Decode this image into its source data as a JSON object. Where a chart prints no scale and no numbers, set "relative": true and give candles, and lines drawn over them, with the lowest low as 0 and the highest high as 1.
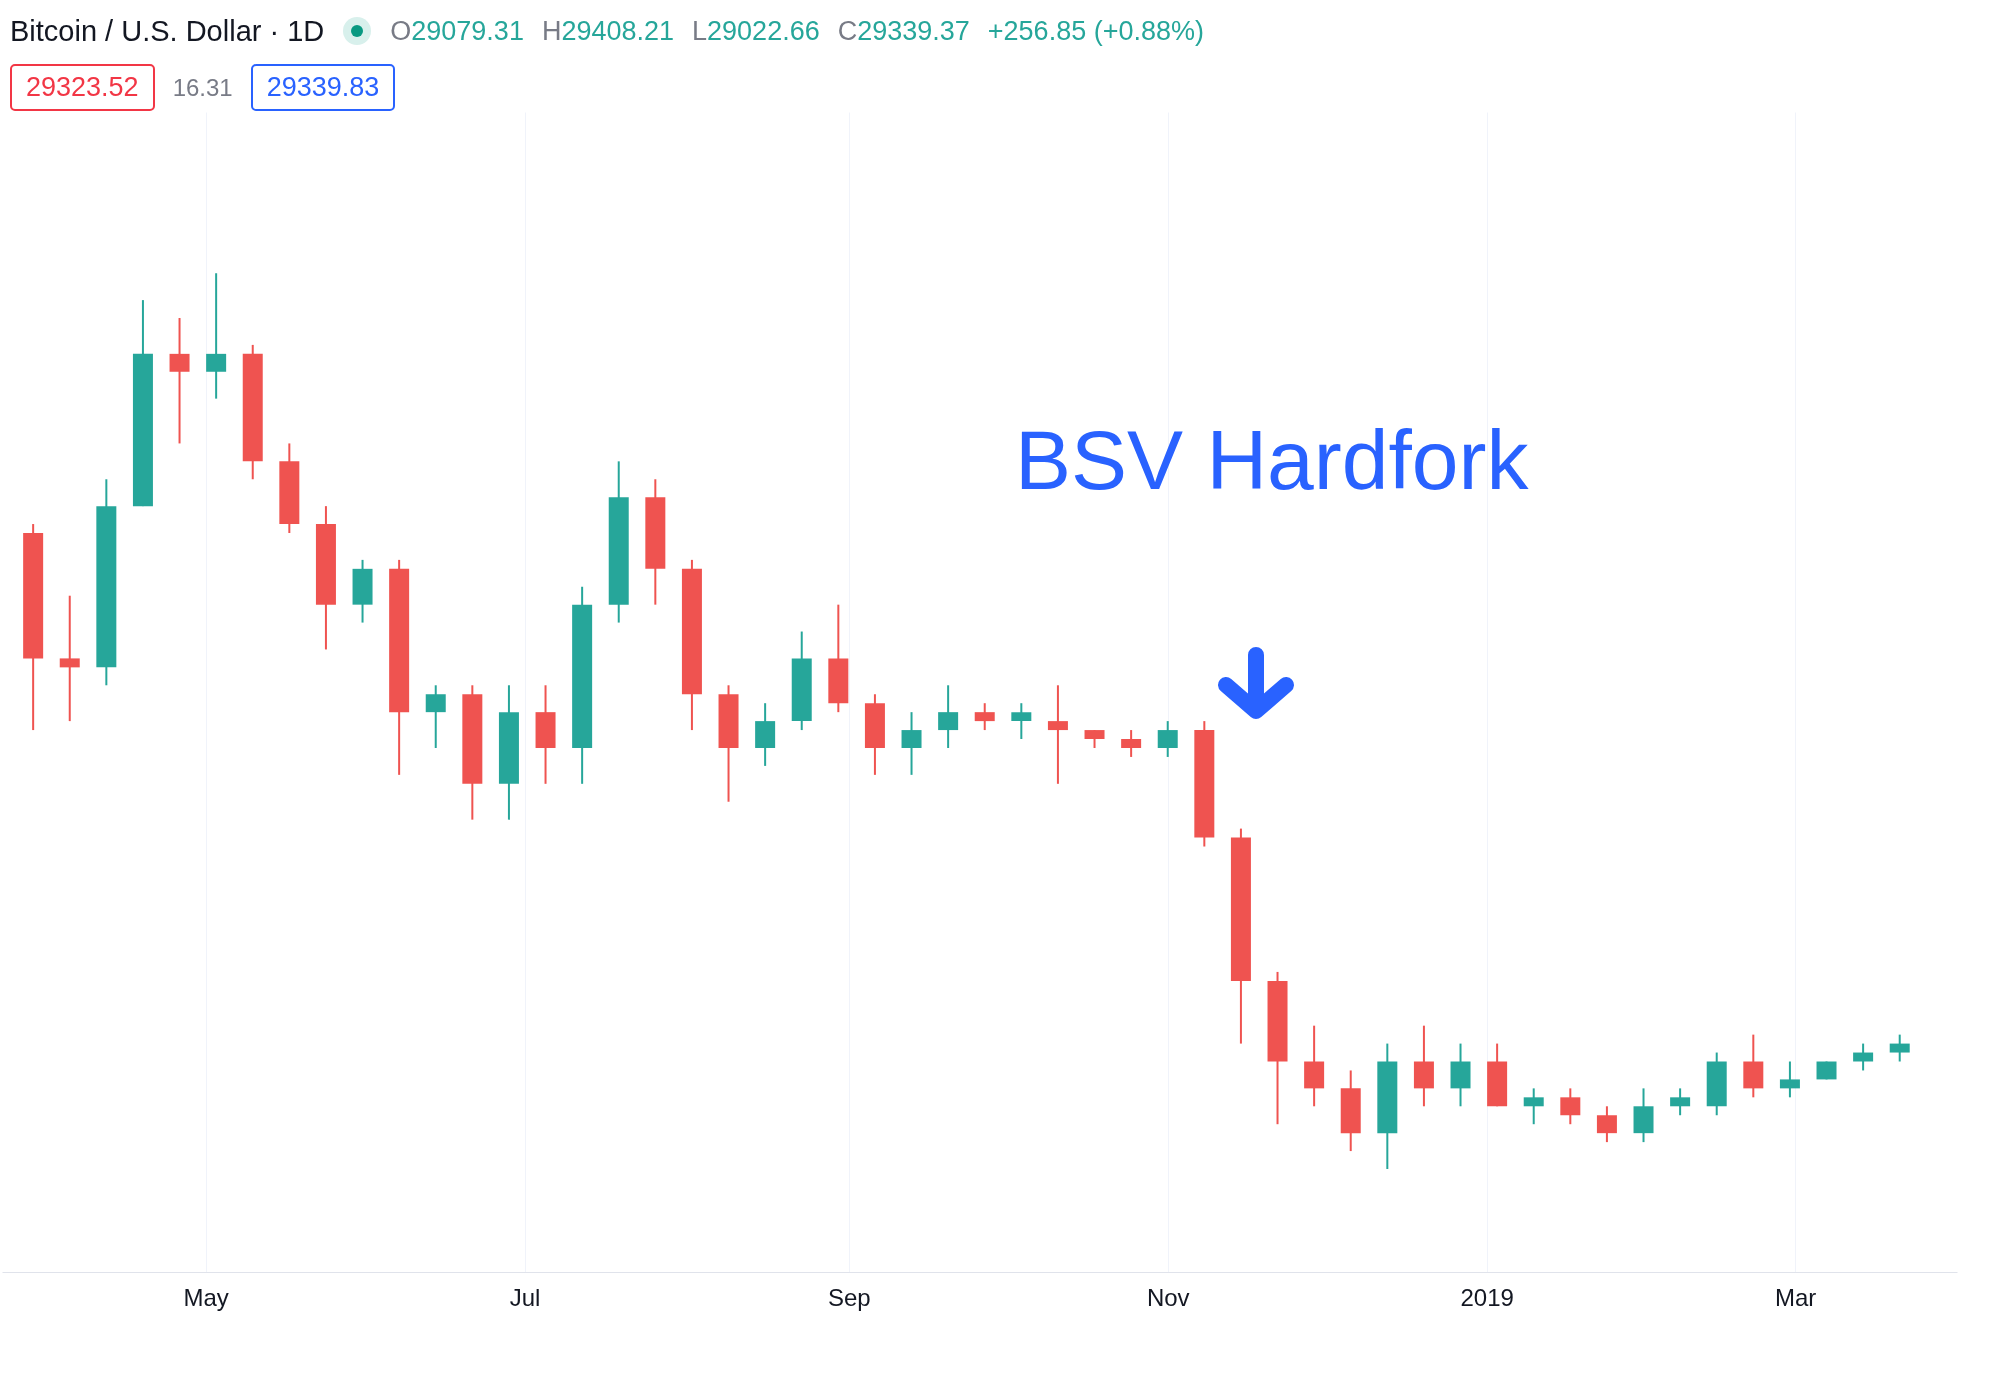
{
  "chart_data": {
    "type": "candlestick",
    "title": "Bitcoin / U.S. Dollar · 1D",
    "relative": true,
    "grid": "x",
    "annotations": [
      "O29079.31",
      "H29408.21",
      "L29022.66",
      "C29339.37",
      "+256.85 (+0.88%)",
      "29323.52",
      "16.31",
      "29339.83",
      "BSV Hardfork"
    ],
    "xlim": [
      "2018-03-24",
      "2019-03-31"
    ],
    "xticks": [
      {
        "value": "2018-05-01",
        "label": "May"
      },
      {
        "value": "2018-07-01",
        "label": "Jul"
      },
      {
        "value": "2018-09-01",
        "label": "Sep"
      },
      {
        "value": "2018-11-01",
        "label": "Nov"
      },
      {
        "value": "2019-01-01",
        "label": "2019"
      },
      {
        "value": "2019-03-01",
        "label": "Mar"
      }
    ],
    "x": [
      "2018-03-29",
      "2018-04-05",
      "2018-04-12",
      "2018-04-19",
      "2018-04-26",
      "2018-05-03",
      "2018-05-10",
      "2018-05-17",
      "2018-05-24",
      "2018-05-31",
      "2018-06-07",
      "2018-06-14",
      "2018-06-21",
      "2018-06-28",
      "2018-07-05",
      "2018-07-12",
      "2018-07-19",
      "2018-07-26",
      "2018-08-02",
      "2018-08-09",
      "2018-08-16",
      "2018-08-23",
      "2018-08-30",
      "2018-09-06",
      "2018-09-13",
      "2018-09-20",
      "2018-09-27",
      "2018-10-04",
      "2018-10-11",
      "2018-10-18",
      "2018-10-25",
      "2018-11-01",
      "2018-11-08",
      "2018-11-15",
      "2018-11-22",
      "2018-11-29",
      "2018-12-06",
      "2018-12-13",
      "2018-12-20",
      "2018-12-27",
      "2019-01-03",
      "2019-01-10",
      "2019-01-17",
      "2019-01-24",
      "2019-01-31",
      "2019-02-07",
      "2019-02-14",
      "2019-02-21",
      "2019-02-28",
      "2019-03-07",
      "2019-03-14",
      "2019-03-21"
    ],
    "ohlc": [
      [
        0.71,
        0.72,
        0.49,
        0.57
      ],
      [
        0.57,
        0.64,
        0.5,
        0.56
      ],
      [
        0.56,
        0.77,
        0.54,
        0.74
      ],
      [
        0.74,
        0.97,
        0.74,
        0.91
      ],
      [
        0.91,
        0.95,
        0.81,
        0.89
      ],
      [
        0.89,
        1.0,
        0.86,
        0.91
      ],
      [
        0.91,
        0.92,
        0.77,
        0.79
      ],
      [
        0.79,
        0.81,
        0.71,
        0.72
      ],
      [
        0.72,
        0.74,
        0.58,
        0.63
      ],
      [
        0.63,
        0.68,
        0.61,
        0.67
      ],
      [
        0.67,
        0.68,
        0.44,
        0.51
      ],
      [
        0.51,
        0.54,
        0.47,
        0.53
      ],
      [
        0.53,
        0.54,
        0.39,
        0.43
      ],
      [
        0.43,
        0.54,
        0.39,
        0.51
      ],
      [
        0.51,
        0.54,
        0.43,
        0.47
      ],
      [
        0.47,
        0.65,
        0.43,
        0.63
      ],
      [
        0.63,
        0.79,
        0.61,
        0.75
      ],
      [
        0.75,
        0.77,
        0.63,
        0.67
      ],
      [
        0.67,
        0.68,
        0.49,
        0.53
      ],
      [
        0.53,
        0.54,
        0.41,
        0.47
      ],
      [
        0.47,
        0.52,
        0.45,
        0.5
      ],
      [
        0.5,
        0.6,
        0.49,
        0.57
      ],
      [
        0.57,
        0.63,
        0.51,
        0.52
      ],
      [
        0.52,
        0.53,
        0.44,
        0.47
      ],
      [
        0.47,
        0.51,
        0.44,
        0.49
      ],
      [
        0.49,
        0.54,
        0.47,
        0.51
      ],
      [
        0.51,
        0.52,
        0.49,
        0.5
      ],
      [
        0.5,
        0.52,
        0.48,
        0.51
      ],
      [
        0.5,
        0.54,
        0.43,
        0.49
      ],
      [
        0.49,
        0.49,
        0.47,
        0.48
      ],
      [
        0.48,
        0.49,
        0.46,
        0.47
      ],
      [
        0.47,
        0.5,
        0.46,
        0.49
      ],
      [
        0.49,
        0.5,
        0.36,
        0.37
      ],
      [
        0.37,
        0.38,
        0.14,
        0.21
      ],
      [
        0.21,
        0.22,
        0.05,
        0.12
      ],
      [
        0.12,
        0.16,
        0.07,
        0.09
      ],
      [
        0.09,
        0.11,
        0.02,
        0.04
      ],
      [
        0.04,
        0.14,
        0.0,
        0.12
      ],
      [
        0.12,
        0.16,
        0.07,
        0.09
      ],
      [
        0.09,
        0.14,
        0.07,
        0.12
      ],
      [
        0.12,
        0.14,
        0.07,
        0.07
      ],
      [
        0.07,
        0.09,
        0.05,
        0.08
      ],
      [
        0.08,
        0.09,
        0.05,
        0.06
      ],
      [
        0.06,
        0.07,
        0.03,
        0.04
      ],
      [
        0.04,
        0.09,
        0.03,
        0.07
      ],
      [
        0.07,
        0.09,
        0.06,
        0.08
      ],
      [
        0.07,
        0.13,
        0.06,
        0.12
      ],
      [
        0.12,
        0.15,
        0.08,
        0.09
      ],
      [
        0.09,
        0.12,
        0.08,
        0.1
      ],
      [
        0.1,
        0.12,
        0.1,
        0.12
      ],
      [
        0.12,
        0.14,
        0.11,
        0.13
      ],
      [
        0.13,
        0.15,
        0.12,
        0.14
      ]
    ]
  }
}
